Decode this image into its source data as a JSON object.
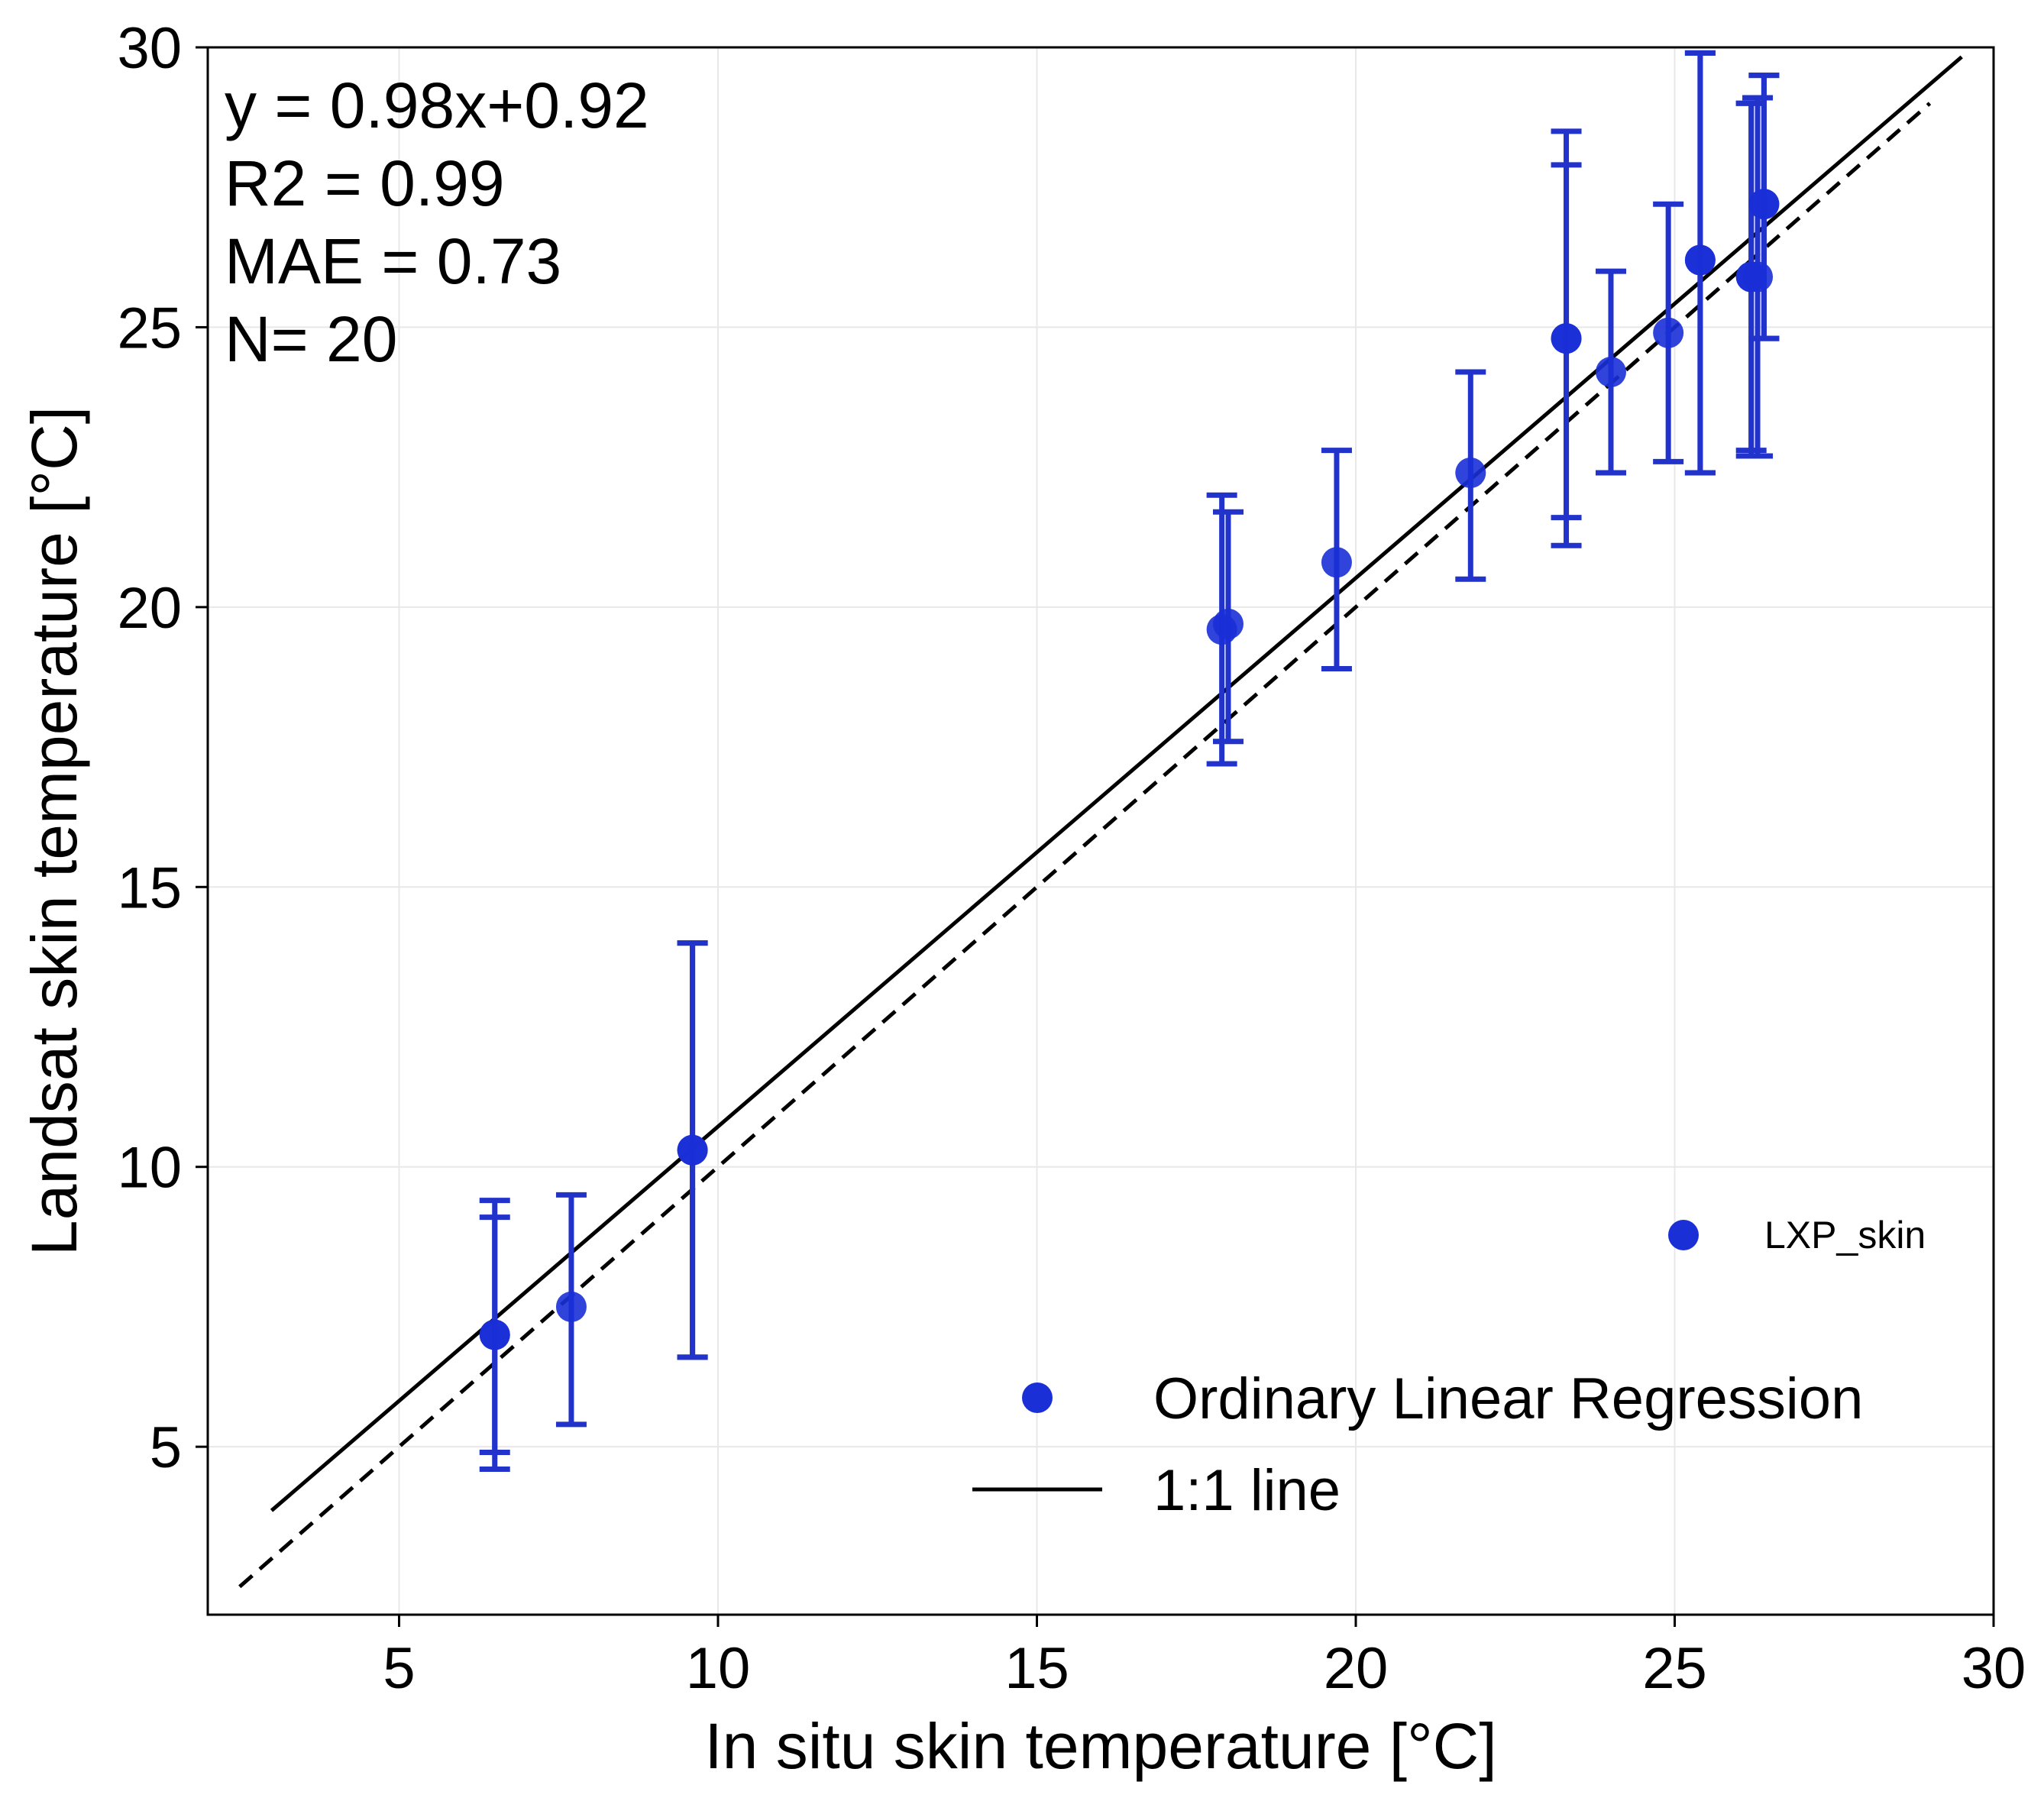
{
  "chart_data": {
    "type": "scatter",
    "xlabel": "In situ skin temperature [°C]",
    "ylabel": "Landsat skin temperature [°C]",
    "xlim": [
      2,
      30
    ],
    "ylim": [
      2,
      30
    ],
    "x_ticks": [
      5,
      10,
      15,
      20,
      25,
      30
    ],
    "y_ticks": [
      5,
      10,
      15,
      20,
      25,
      30
    ],
    "grid": true,
    "stats": [
      "y = 0.98x+0.92",
      "R2 = 0.99",
      "MAE = 0.73",
      "N= 20"
    ],
    "legend": {
      "position": "bottom-right",
      "entries": [
        {
          "label": "Ordinary Linear Regression",
          "marker": "circle"
        },
        {
          "label": "1:1 line",
          "marker": "line"
        }
      ]
    },
    "secondary_legend": {
      "position": "right",
      "label": "LXP_skin",
      "marker": "circle"
    },
    "colors": {
      "points": "#1a2fd6",
      "errorbars": "#2233cc",
      "lines": "#000000"
    },
    "series": [
      {
        "name": "LXP_skin",
        "points": [
          {
            "x": 6.5,
            "y": 7.0,
            "err_low": 4.6,
            "err_high": 9.4
          },
          {
            "x": 6.5,
            "y": 7.0,
            "err_low": 4.9,
            "err_high": 9.1
          },
          {
            "x": 7.7,
            "y": 7.5,
            "err_low": 5.4,
            "err_high": 9.5
          },
          {
            "x": 9.6,
            "y": 10.3,
            "err_low": 6.6,
            "err_high": 14.0
          },
          {
            "x": 9.6,
            "y": 10.3,
            "err_low": 6.6,
            "err_high": 14.0
          },
          {
            "x": 17.9,
            "y": 19.6,
            "err_low": 17.2,
            "err_high": 22.0
          },
          {
            "x": 18.0,
            "y": 19.7,
            "err_low": 17.6,
            "err_high": 21.7
          },
          {
            "x": 19.7,
            "y": 20.8,
            "err_low": 18.9,
            "err_high": 22.8
          },
          {
            "x": 21.8,
            "y": 22.4,
            "err_low": 20.5,
            "err_high": 24.2
          },
          {
            "x": 23.3,
            "y": 24.8,
            "err_low": 21.1,
            "err_high": 28.5
          },
          {
            "x": 23.3,
            "y": 24.8,
            "err_low": 21.6,
            "err_high": 27.9
          },
          {
            "x": 24.0,
            "y": 24.2,
            "err_low": 22.4,
            "err_high": 26.0
          },
          {
            "x": 24.9,
            "y": 24.9,
            "err_low": 22.6,
            "err_high": 27.2
          },
          {
            "x": 25.4,
            "y": 26.2,
            "err_low": 22.4,
            "err_high": 29.9
          },
          {
            "x": 25.4,
            "y": 26.2,
            "err_low": 22.4,
            "err_high": 29.9
          },
          {
            "x": 26.2,
            "y": 25.9,
            "err_low": 22.7,
            "err_high": 29.0
          },
          {
            "x": 26.2,
            "y": 25.9,
            "err_low": 22.8,
            "err_high": 29.0
          },
          {
            "x": 26.3,
            "y": 25.9,
            "err_low": 22.7,
            "err_high": 29.1
          },
          {
            "x": 26.4,
            "y": 27.2,
            "err_low": 24.8,
            "err_high": 29.5
          },
          {
            "x": 26.4,
            "y": 27.2,
            "err_low": 24.8,
            "err_high": 29.5
          }
        ]
      }
    ],
    "lines": [
      {
        "name": "Ordinary Linear Regression",
        "style": "solid",
        "x": [
          3.0,
          29.5
        ],
        "y": [
          3.86,
          29.83
        ]
      },
      {
        "name": "1:1 line",
        "style": "dashed",
        "x": [
          2.5,
          29.0
        ],
        "y": [
          2.5,
          29.0
        ]
      }
    ]
  }
}
